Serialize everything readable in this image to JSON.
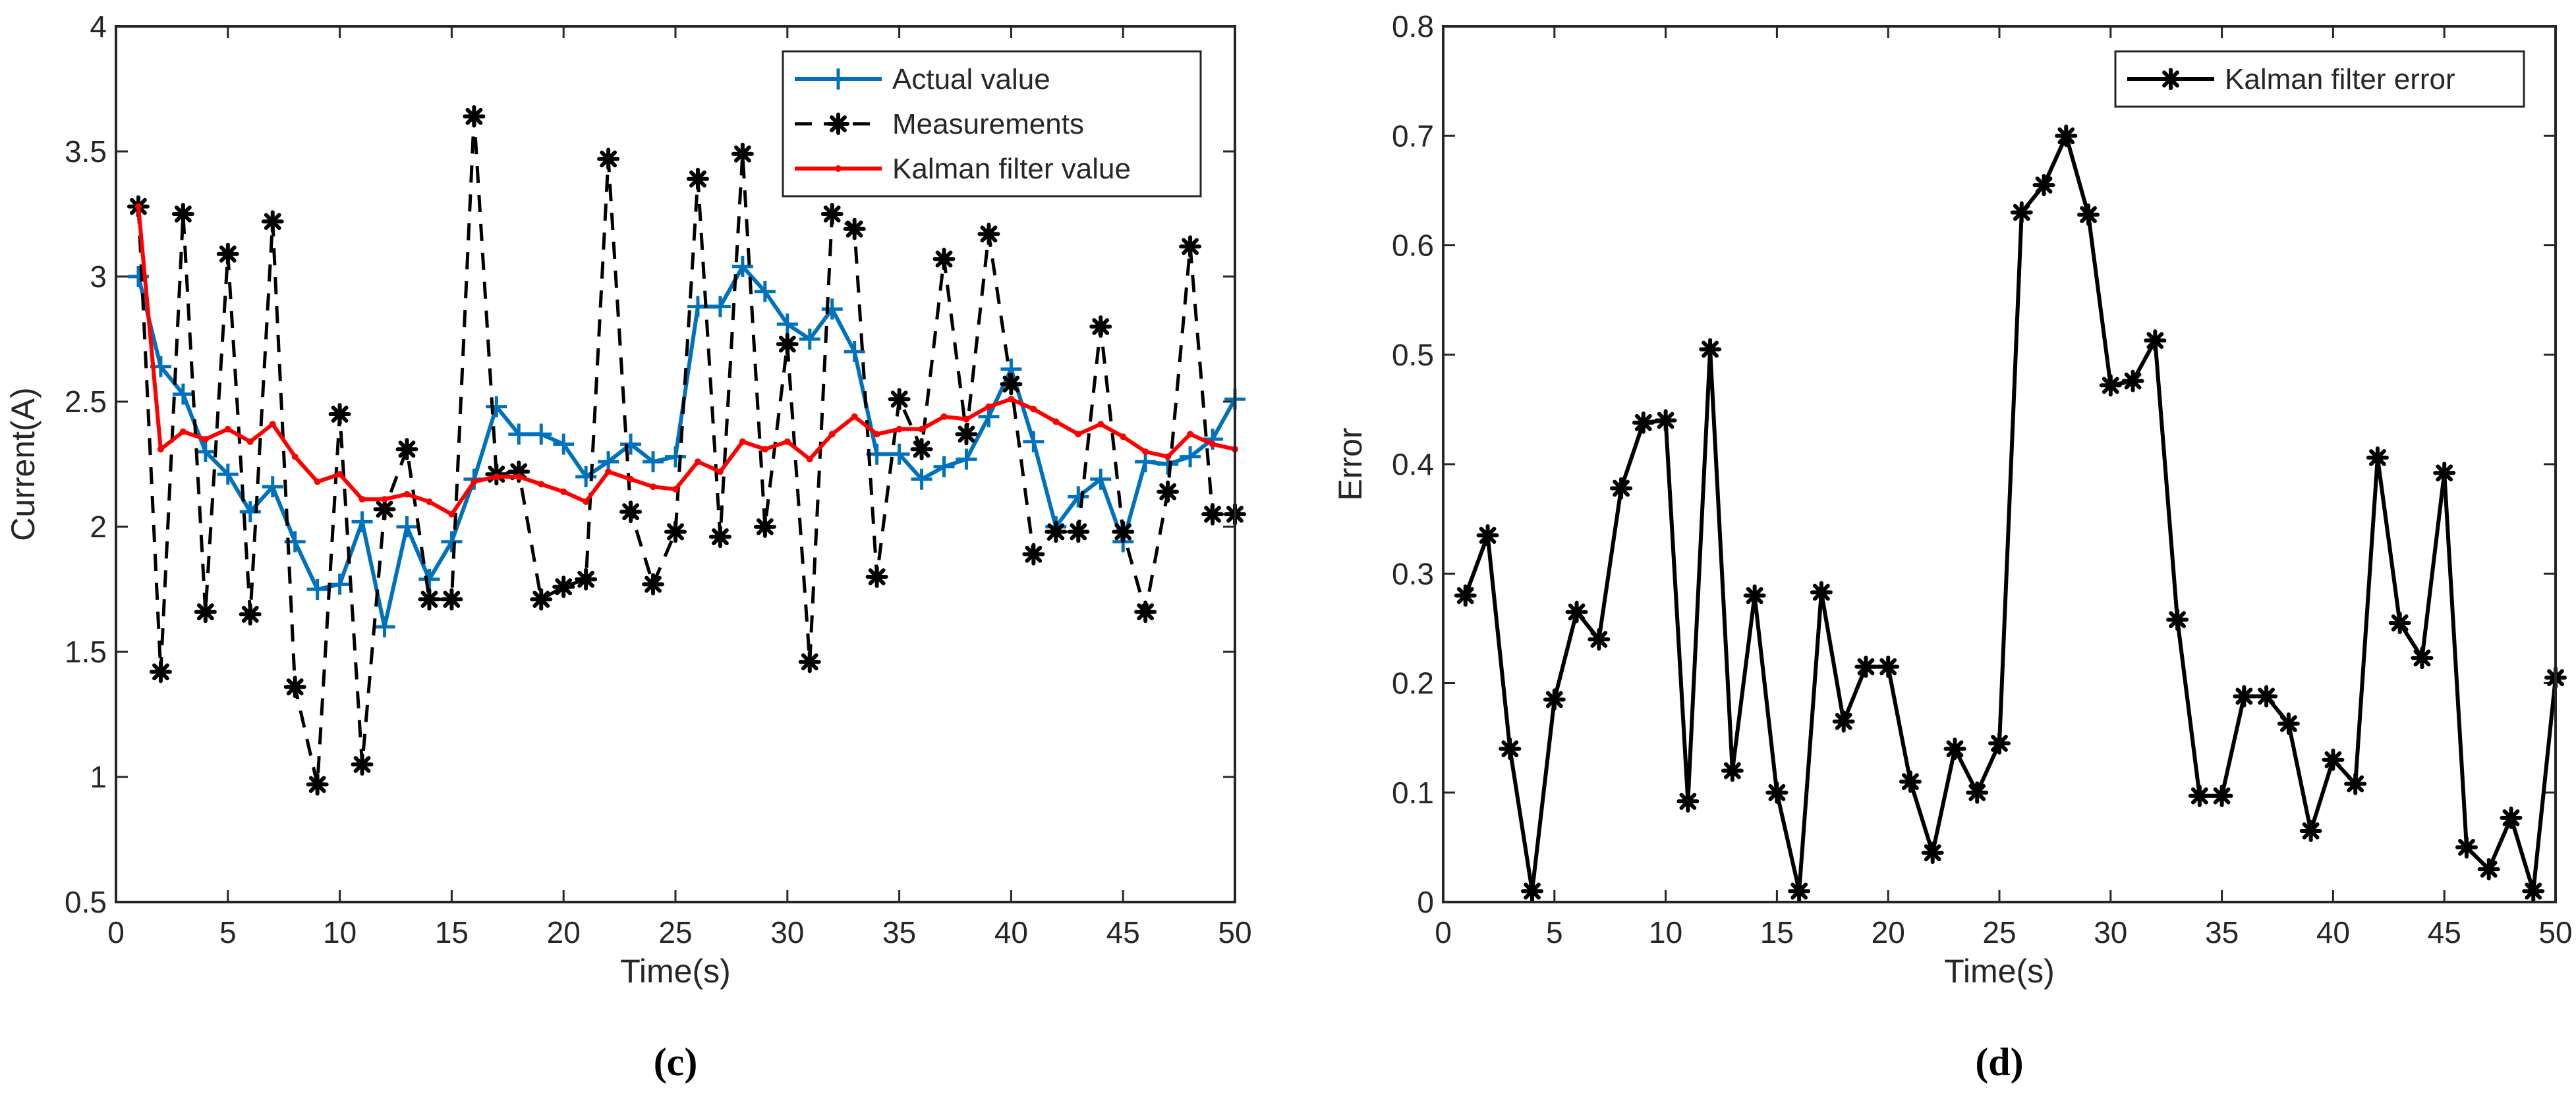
{
  "colors": {
    "actual": "#0072BD",
    "measure": "#000000",
    "kalman": "#FF0000",
    "error": "#000000",
    "axis": "#262626"
  },
  "chart_data": [
    {
      "type": "line",
      "caption": "(c)",
      "title": "",
      "xlabel": "Time(s)",
      "ylabel": "Current(A)",
      "xlim": [
        0,
        50
      ],
      "ylim": [
        0.5,
        4
      ],
      "xticks": [
        0,
        5,
        10,
        15,
        20,
        25,
        30,
        35,
        40,
        45,
        50
      ],
      "yticks": [
        0.5,
        1,
        1.5,
        2,
        2.5,
        3,
        3.5,
        4
      ],
      "ytick_labels": [
        "0.5",
        "1",
        "1.5",
        "2",
        "2.5",
        "3",
        "3.5",
        "4"
      ],
      "legend_position": "top-right",
      "x": [
        1,
        2,
        3,
        4,
        5,
        6,
        7,
        8,
        9,
        10,
        11,
        12,
        13,
        14,
        15,
        16,
        17,
        18,
        19,
        20,
        21,
        22,
        23,
        24,
        25,
        26,
        27,
        28,
        29,
        30,
        31,
        32,
        33,
        34,
        35,
        36,
        37,
        38,
        39,
        40,
        41,
        42,
        43,
        44,
        45,
        46,
        47,
        48,
        49,
        50
      ],
      "series": [
        {
          "name": "Actual value",
          "style": "solid-plus",
          "color_key": "actual",
          "values": [
            3.0,
            2.64,
            2.53,
            2.3,
            2.21,
            2.06,
            2.16,
            1.94,
            1.75,
            1.77,
            2.02,
            1.6,
            2.0,
            1.79,
            1.94,
            2.19,
            2.48,
            2.37,
            2.37,
            2.33,
            2.2,
            2.26,
            2.33,
            2.26,
            2.28,
            2.88,
            2.88,
            3.04,
            2.94,
            2.81,
            2.75,
            2.87,
            2.7,
            2.29,
            2.29,
            2.19,
            2.24,
            2.27,
            2.44,
            2.63,
            2.34,
            2.0,
            2.12,
            2.19,
            1.94,
            2.26,
            2.25,
            2.28,
            2.35,
            2.51
          ]
        },
        {
          "name": "Measurements",
          "style": "dashed-star",
          "color_key": "measure",
          "values": [
            3.28,
            1.42,
            3.25,
            1.66,
            3.09,
            1.65,
            3.22,
            1.36,
            0.97,
            2.45,
            1.05,
            2.07,
            2.31,
            1.71,
            1.71,
            3.64,
            2.21,
            2.22,
            1.71,
            1.76,
            1.79,
            3.47,
            2.06,
            1.77,
            1.98,
            3.39,
            1.96,
            3.49,
            2.0,
            2.73,
            1.46,
            3.25,
            3.19,
            1.8,
            2.51,
            2.31,
            3.07,
            2.37,
            3.17,
            2.57,
            1.89,
            1.98,
            1.98,
            2.8,
            1.98,
            1.66,
            2.14,
            3.12,
            2.05,
            2.05
          ]
        },
        {
          "name": "Kalman filter value",
          "style": "solid-dot",
          "color_key": "kalman",
          "values": [
            3.28,
            2.31,
            2.38,
            2.35,
            2.39,
            2.34,
            2.41,
            2.28,
            2.18,
            2.21,
            2.11,
            2.11,
            2.13,
            2.1,
            2.05,
            2.18,
            2.2,
            2.2,
            2.17,
            2.14,
            2.1,
            2.22,
            2.19,
            2.16,
            2.15,
            2.26,
            2.22,
            2.34,
            2.31,
            2.34,
            2.27,
            2.37,
            2.44,
            2.37,
            2.39,
            2.39,
            2.44,
            2.43,
            2.48,
            2.51,
            2.47,
            2.42,
            2.37,
            2.41,
            2.36,
            2.3,
            2.28,
            2.37,
            2.33,
            2.31
          ]
        }
      ]
    },
    {
      "type": "line",
      "caption": "(d)",
      "title": "",
      "xlabel": "Time(s)",
      "ylabel": "Error",
      "xlim": [
        0,
        50
      ],
      "ylim": [
        0,
        0.8
      ],
      "xticks": [
        0,
        5,
        10,
        15,
        20,
        25,
        30,
        35,
        40,
        45,
        50
      ],
      "yticks": [
        0,
        0.1,
        0.2,
        0.3,
        0.4,
        0.5,
        0.6,
        0.7,
        0.8
      ],
      "ytick_labels": [
        "0",
        "0.1",
        "0.2",
        "0.3",
        "0.4",
        "0.5",
        "0.6",
        "0.7",
        "0.8"
      ],
      "legend_position": "top-right",
      "x": [
        1,
        2,
        3,
        4,
        5,
        6,
        7,
        8,
        9,
        10,
        11,
        12,
        13,
        14,
        15,
        16,
        17,
        18,
        19,
        20,
        21,
        22,
        23,
        24,
        25,
        26,
        27,
        28,
        29,
        30,
        31,
        32,
        33,
        34,
        35,
        36,
        37,
        38,
        39,
        40,
        41,
        42,
        43,
        44,
        45,
        46,
        47,
        48,
        49,
        50
      ],
      "series": [
        {
          "name": "Kalman filter error",
          "style": "solid-star",
          "color_key": "error",
          "values": [
            0.28,
            0.335,
            0.14,
            0.01,
            0.185,
            0.265,
            0.24,
            0.378,
            0.438,
            0.44,
            0.092,
            0.505,
            0.12,
            0.28,
            0.1,
            0.01,
            0.283,
            0.165,
            0.215,
            0.215,
            0.11,
            0.045,
            0.14,
            0.1,
            0.145,
            0.63,
            0.655,
            0.7,
            0.628,
            0.472,
            0.476,
            0.513,
            0.258,
            0.097,
            0.097,
            0.188,
            0.188,
            0.163,
            0.065,
            0.13,
            0.108,
            0.406,
            0.255,
            0.223,
            0.392,
            0.05,
            0.03,
            0.077,
            0.01,
            0.205
          ]
        }
      ]
    }
  ]
}
